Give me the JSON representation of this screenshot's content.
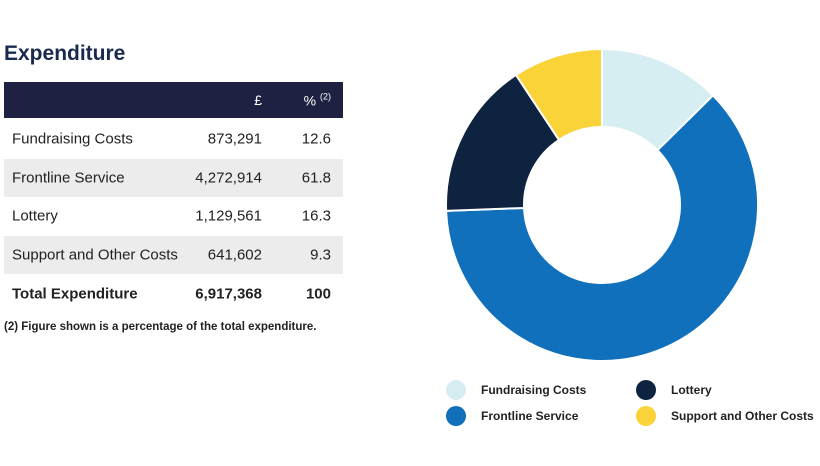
{
  "title": "Expenditure",
  "table": {
    "columns": [
      "£",
      "%"
    ],
    "percent_note": "(2)",
    "amounts": [
      "873,291",
      "4,272,914",
      "1,129,561",
      "641,602"
    ],
    "total": {
      "label": "Total Expenditure",
      "amount": "6,917,368",
      "percent": "100"
    }
  },
  "footnote": "(2) Figure shown is a percentage of the total expenditure.",
  "chart_data": {
    "type": "pie",
    "donut": true,
    "categories": [
      "Fundraising Costs",
      "Frontline Service",
      "Lottery",
      "Support and Other Costs"
    ],
    "values": [
      12.6,
      61.8,
      16.3,
      9.3
    ],
    "colors": [
      "#d6eef2",
      "#1170bb",
      "#0d2340",
      "#fad339"
    ]
  }
}
